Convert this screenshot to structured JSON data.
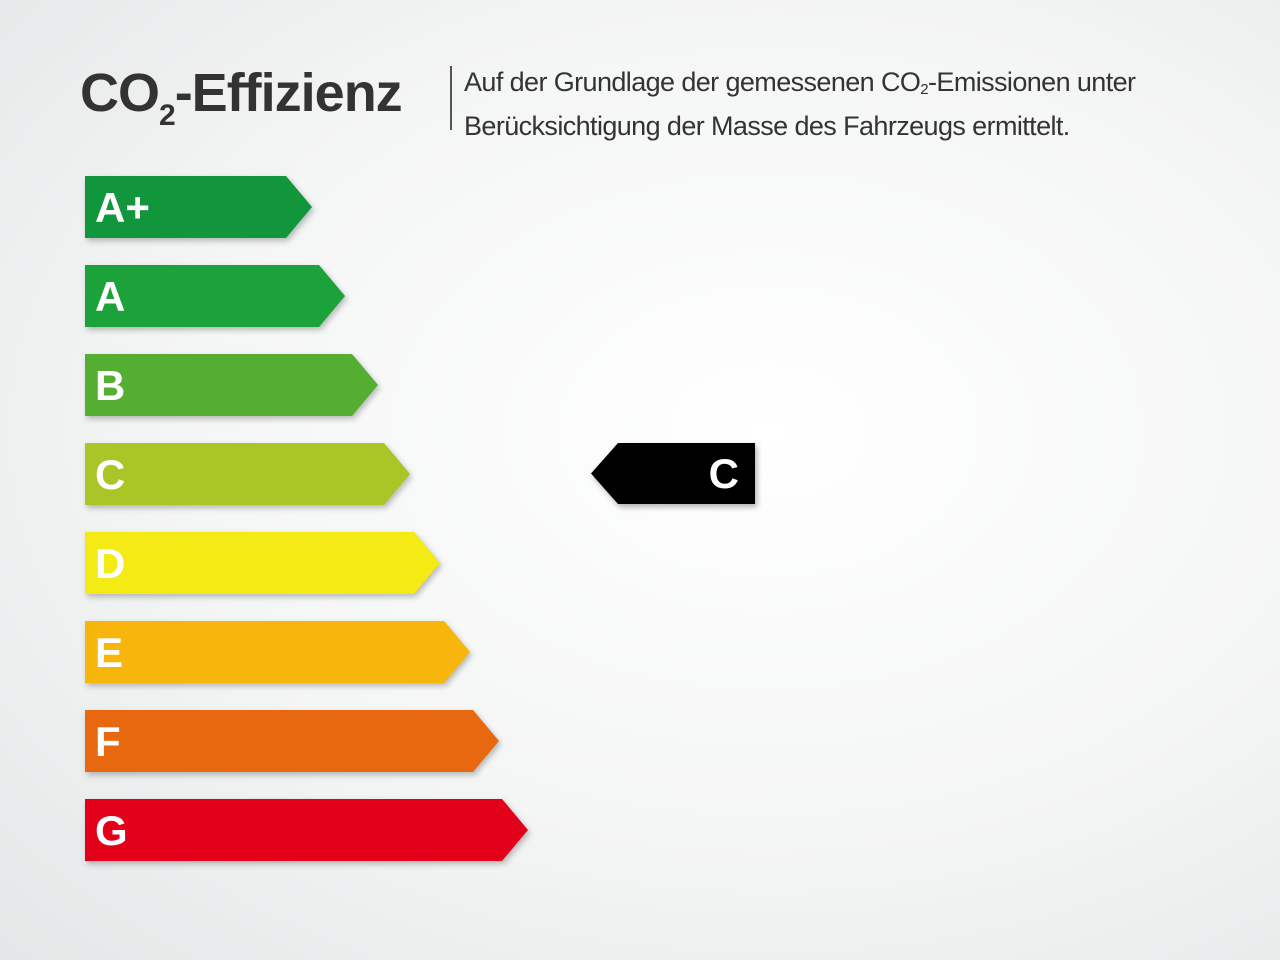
{
  "header": {
    "title_prefix": "CO",
    "title_sub": "2",
    "title_suffix": "-Effizienz",
    "desc_line1_a": "Auf der Grundlage der gemessenen CO",
    "desc_line1_sub": "2",
    "desc_line1_b": "-Emissionen unter",
    "desc_line2": "Berücksichtigung der Masse des Fahrzeugs ermittelt."
  },
  "classes": [
    {
      "label": "A+",
      "color": "#11963c"
    },
    {
      "label": "A",
      "color": "#1ca23a"
    },
    {
      "label": "B",
      "color": "#54ae32"
    },
    {
      "label": "C",
      "color": "#a9c626"
    },
    {
      "label": "D",
      "color": "#f4ea14"
    },
    {
      "label": "E",
      "color": "#f8b60c"
    },
    {
      "label": "F",
      "color": "#e8680f"
    },
    {
      "label": "G",
      "color": "#e2001a"
    }
  ],
  "rating": {
    "label": "C",
    "color": "#000000"
  }
}
